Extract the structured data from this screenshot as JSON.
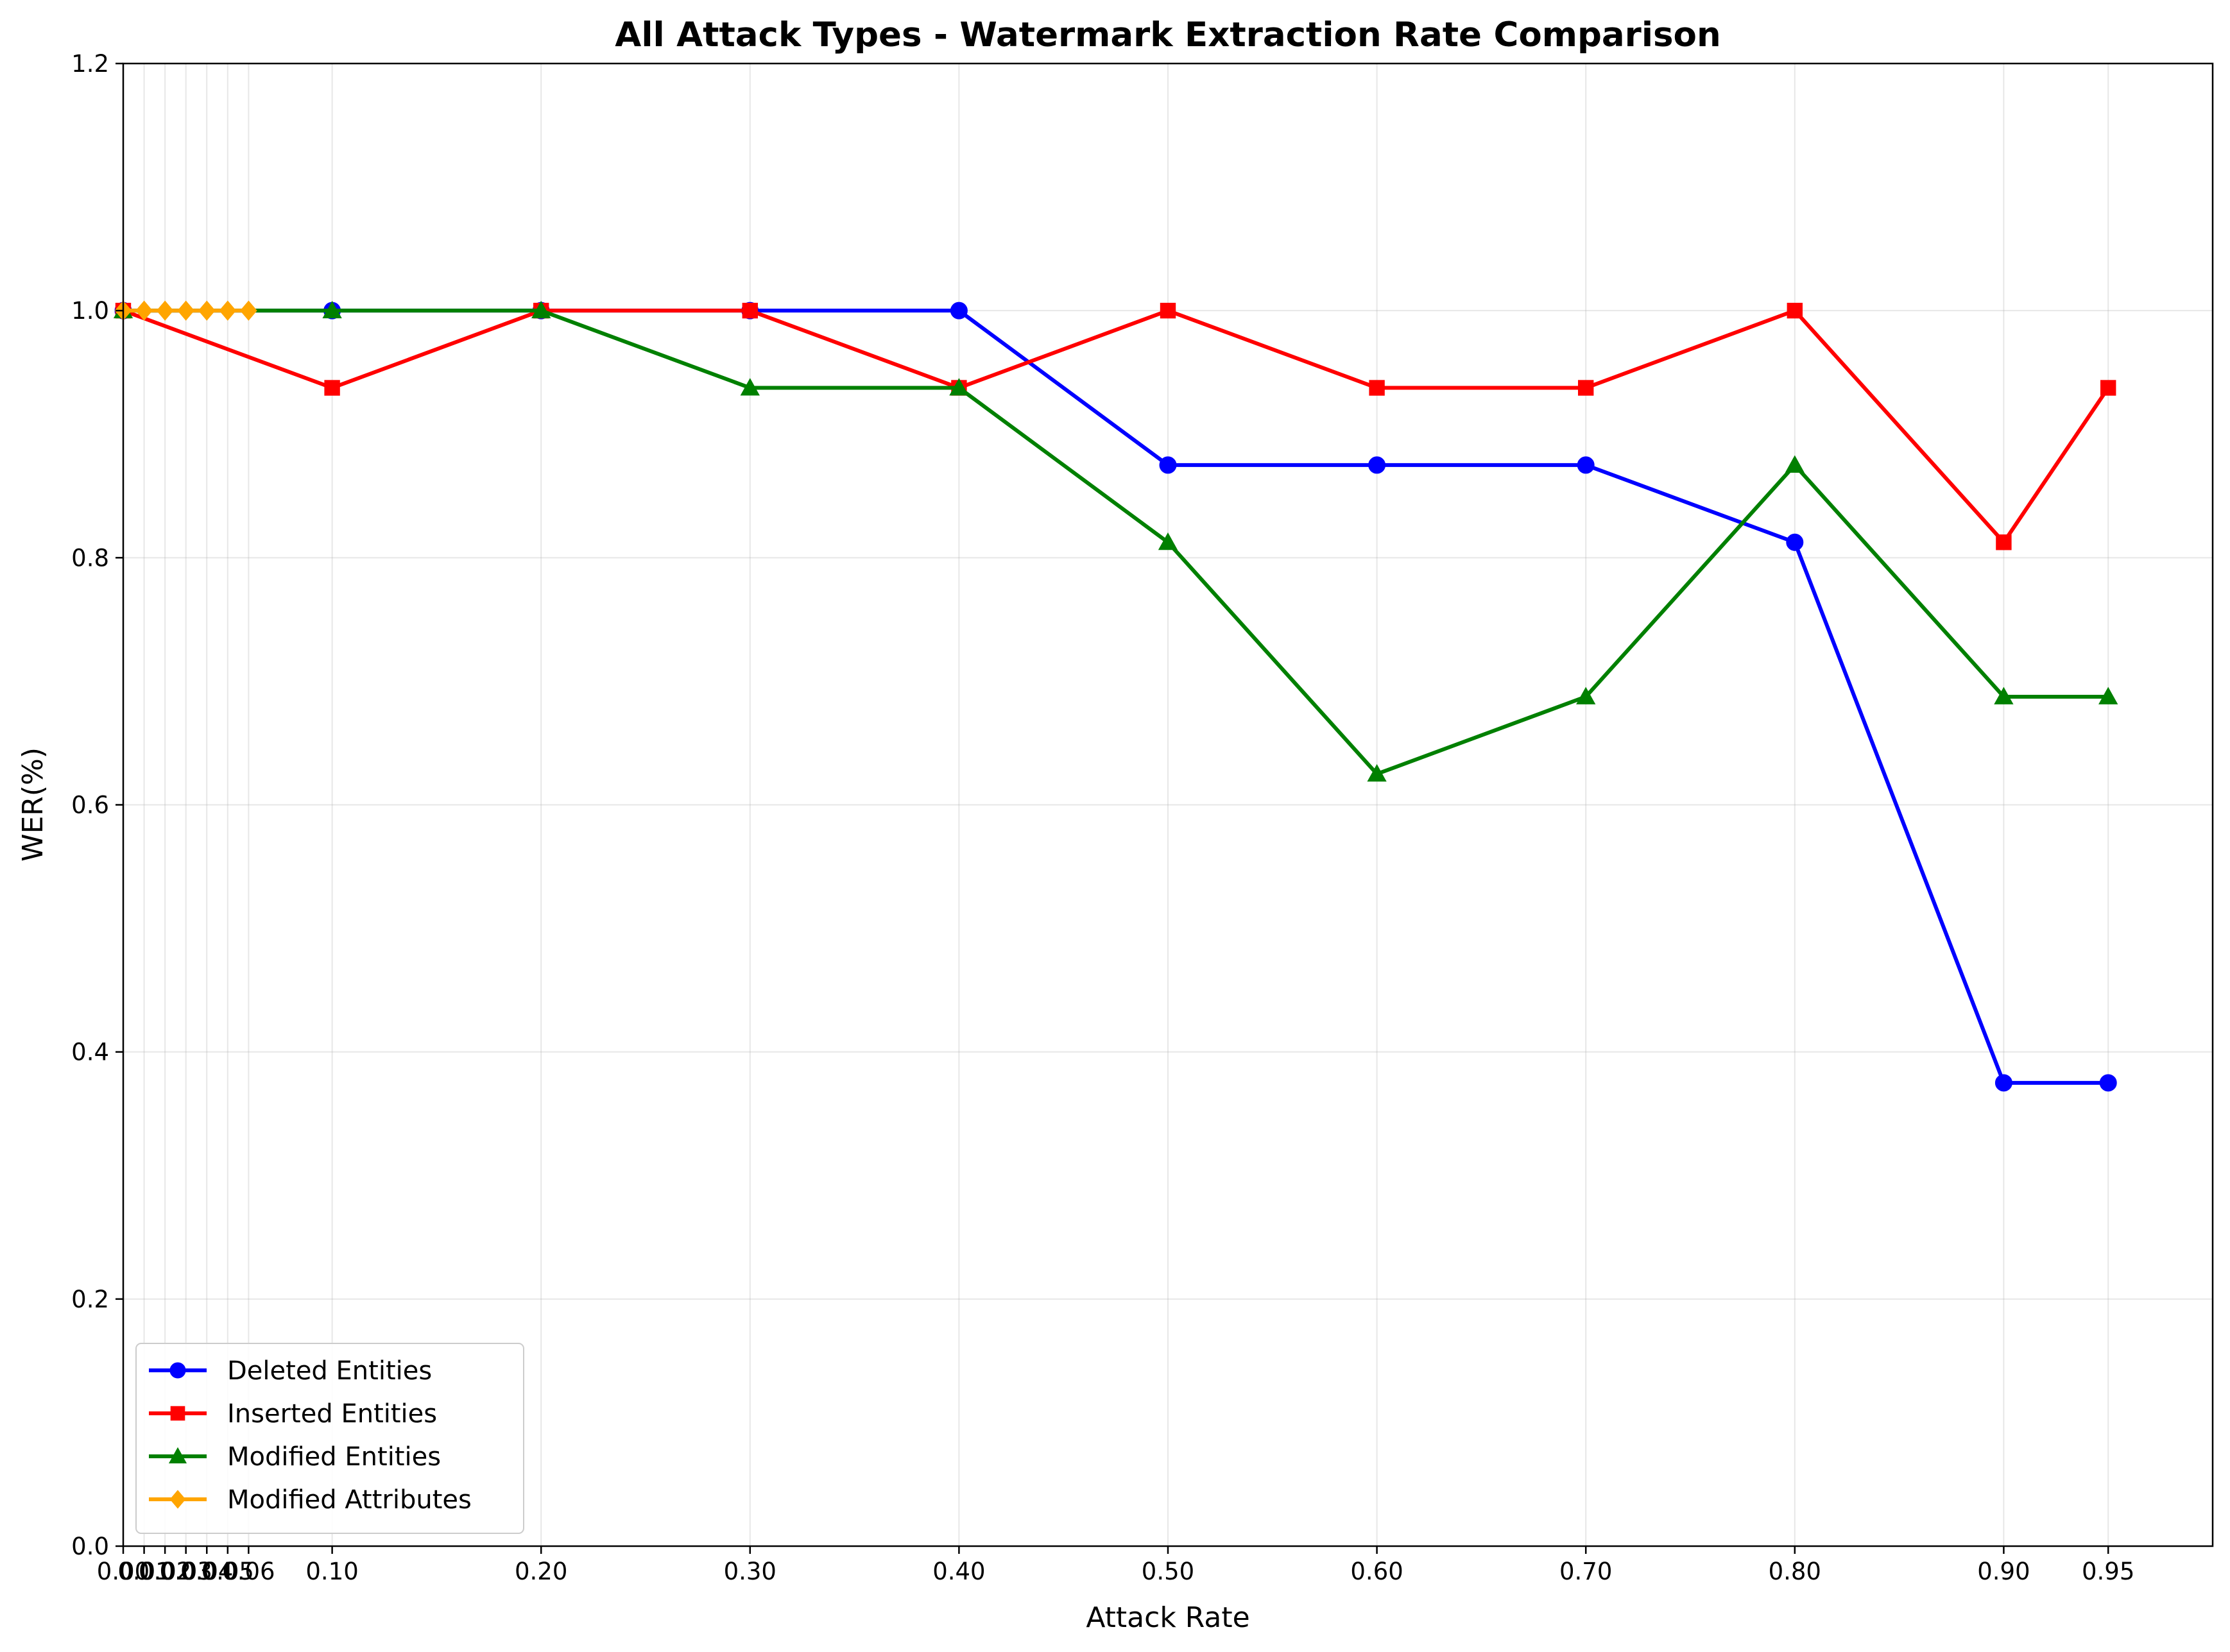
{
  "chart_data": {
    "type": "line",
    "title": "All Attack Types - Watermark Extraction Rate Comparison",
    "xlabel": "Attack Rate",
    "ylabel": "WER(%)",
    "xlim": [
      0,
      1.0
    ],
    "ylim": [
      0,
      1.2
    ],
    "grid": true,
    "legend_position": "bottom-left",
    "x_ticks": [
      0.0,
      0.01,
      0.02,
      0.03,
      0.04,
      0.05,
      0.06,
      0.1,
      0.2,
      0.3,
      0.4,
      0.5,
      0.6,
      0.7,
      0.8,
      0.9,
      0.95
    ],
    "x_tick_labels": [
      "0.00",
      "0.01",
      "0.02",
      "0.03",
      "0.04",
      "0.05",
      "0.06",
      "0.10",
      "0.20",
      "0.30",
      "0.40",
      "0.50",
      "0.60",
      "0.70",
      "0.80",
      "0.90",
      "0.95"
    ],
    "y_ticks": [
      0.0,
      0.2,
      0.4,
      0.6,
      0.8,
      1.0,
      1.2
    ],
    "y_tick_labels": [
      "0.0",
      "0.2",
      "0.4",
      "0.6",
      "0.8",
      "1.0",
      "1.2"
    ],
    "series": [
      {
        "name": "Deleted Entities",
        "color": "#0000ff",
        "marker": "circle",
        "x": [
          0.0,
          0.1,
          0.2,
          0.3,
          0.4,
          0.5,
          0.6,
          0.7,
          0.8,
          0.9,
          0.95
        ],
        "y": [
          1.0,
          1.0,
          1.0,
          1.0,
          1.0,
          0.875,
          0.875,
          0.875,
          0.8125,
          0.375,
          0.375
        ]
      },
      {
        "name": "Inserted Entities",
        "color": "#ff0000",
        "marker": "square",
        "x": [
          0.0,
          0.1,
          0.2,
          0.3,
          0.4,
          0.5,
          0.6,
          0.7,
          0.8,
          0.9,
          0.95
        ],
        "y": [
          1.0,
          0.9375,
          1.0,
          1.0,
          0.9375,
          1.0,
          0.9375,
          0.9375,
          1.0,
          0.8125,
          0.9375
        ]
      },
      {
        "name": "Modified Entities",
        "color": "#008000",
        "marker": "triangle",
        "x": [
          0.0,
          0.1,
          0.2,
          0.3,
          0.4,
          0.5,
          0.6,
          0.7,
          0.8,
          0.9,
          0.95
        ],
        "y": [
          1.0,
          1.0,
          1.0,
          0.9375,
          0.9375,
          0.8125,
          0.625,
          0.6875,
          0.875,
          0.6875,
          0.6875
        ]
      },
      {
        "name": "Modified Attributes",
        "color": "#ffa500",
        "marker": "diamond",
        "x": [
          0.0,
          0.01,
          0.02,
          0.03,
          0.04,
          0.05,
          0.06
        ],
        "y": [
          1.0,
          1.0,
          1.0,
          1.0,
          1.0,
          1.0,
          1.0
        ]
      }
    ]
  }
}
